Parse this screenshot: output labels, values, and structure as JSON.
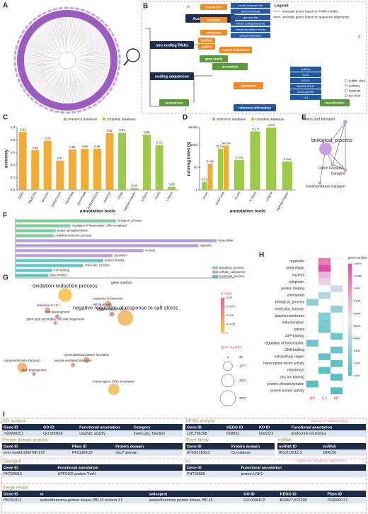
{
  "panel_labels": [
    "A",
    "B",
    "C",
    "D",
    "E",
    "F",
    "G",
    "H",
    "I"
  ],
  "diagram_b": {
    "numerals": [
      "iii",
      "ii",
      "i"
    ],
    "nodes": [
      "Auxiliary functions",
      "non-coding RNAs",
      "coding sequences",
      "lncRNA",
      "miRNA",
      "extract sequences",
      "gene family",
      "annotation",
      "annotations",
      "databases",
      "reference information",
      "visualization",
      "conversion",
      "translate",
      "extraction"
    ],
    "aux_items": [
      "format sequence file",
      "batch download",
      "genome file",
      "extract coding sequence",
      "merge annotation results",
      "extract information"
    ],
    "db_items": [
      "UniProt",
      "COG",
      "KEGG",
      "SWISS-PROT",
      "plant-specific",
      "GO"
    ],
    "vis_items": [
      "bubble chart",
      "pathway",
      "heatmap",
      "bar chart"
    ],
    "legend_title": "Legend",
    "legend_items": [
      "annotate genes based on HMM models",
      "annotate genes based on sequence alignments"
    ]
  },
  "network_e": {
    "nodes": [
      "amino acid transport",
      "biological_process",
      "cation transport",
      "transport",
      "transmembrane transport"
    ]
  },
  "chart_data": [
    {
      "type": "bar",
      "x_label": "annotation tools",
      "y_label": "accuracy",
      "categories": [
        "GFAP",
        "blast2GO",
        "pannzer",
        "interproscan",
        "blastkoala",
        "ghostkoala",
        "KofamKOALA",
        "pannzer",
        "GFAP",
        "eggnog-mapper",
        "KOBAS",
        "KAAS",
        "Uniprot"
      ],
      "series": [
        {
          "name": "reference database",
          "color": "#9ccb4a",
          "values": [
            null,
            null,
            null,
            null,
            null,
            null,
            null,
            null,
            0.92,
            0.03,
            0.89,
            0.72,
            0.05
          ]
        },
        {
          "name": "complete database",
          "color": "#f2ab33",
          "values": [
            0.93,
            0.64,
            0.79,
            0.47,
            0.65,
            0.66,
            0.66,
            0.91,
            null,
            null,
            null,
            null,
            null
          ]
        }
      ],
      "ylim": [
        0,
        1
      ],
      "yticks": [
        {
          "value": 0,
          "label": "0.0"
        },
        0.2,
        0.4,
        0.6,
        0.8,
        {
          "value": 1,
          "label": "1.0"
        }
      ]
    },
    {
      "type": "bar",
      "log_scale": true,
      "x_label": "annotation tools",
      "y_label": "running times (s)",
      "categories": [
        "GFAP",
        "GFAP-web",
        "KAAS",
        "KOBAS",
        "Uniprot",
        "eggnog-mapper"
      ],
      "series": [
        {
          "name": "reference database",
          "color": "#9ccb4a",
          "values": [
            4.5,
            1860,
            240,
            43200,
            86400,
            180
          ],
          "value_labels": [
            "4.5 s",
            "31 min",
            "4 min",
            "+12 h",
            "+24 h",
            "3 min"
          ]
        },
        {
          "name": "complete database",
          "color": "#f2ab33",
          "values": [
            120,
            3240,
            null,
            null,
            null,
            null
          ],
          "value_labels": [
            "2 min",
            "54 min",
            null,
            null,
            null,
            null
          ]
        }
      ],
      "ylim": [
        1,
        86400
      ],
      "yticks": [
        1,
        60,
        3600,
        86400
      ]
    },
    {
      "type": "hbar",
      "x_label": "gene number",
      "categories": [
        "biological_process",
        "regulation of transcription, DNA-templated",
        "protein phosphorylation",
        "oxidation-reduction process",
        "intracellular",
        "organelle",
        "nucleus",
        "cytoplasm",
        "protein binding",
        "molecular_function",
        "ATP binding",
        "DNA binding"
      ],
      "series": [
        {
          "name": "biological_process",
          "color": "#7fcf9a",
          "values": [
            5500,
            3000,
            2200,
            2100,
            null,
            null,
            null,
            null,
            null,
            null,
            null,
            null
          ]
        },
        {
          "name": "cellular_component",
          "color": "#b79bd8",
          "values": [
            null,
            null,
            null,
            null,
            11000,
            10000,
            7000,
            5300,
            null,
            null,
            null,
            null
          ]
        },
        {
          "name": "molecular_function",
          "color": "#5fc3c3",
          "values": [
            null,
            null,
            null,
            null,
            null,
            null,
            null,
            null,
            4800,
            3700,
            2000,
            1800
          ]
        }
      ],
      "xlim": [
        0,
        12000
      ]
    },
    {
      "type": "bubble",
      "color_label": "p.value",
      "size_label": "gene number",
      "labels": [
        "oxidation-reduction process",
        "negative regulation of response to salt stress",
        "response to UV",
        "root development",
        "plant-type secondary cell wall biogenesis",
        "response to hormone",
        "cell tip growth",
        "protein ubiquitination",
        "proximal/distal pattern formation",
        "vesicle-mediated transport",
        "transmembrane transport",
        "leaf development",
        "transcription, DNA-templated"
      ],
      "x": [
        2.8,
        5.9,
        1.9,
        2.4,
        2.3,
        5.0,
        4.7,
        5.2,
        3.9,
        3.2,
        0.6,
        1.2,
        5.3
      ],
      "values": [
        9.0,
        7.2,
        7.8,
        7.3,
        6.8,
        8.3,
        7.9,
        7.5,
        3.9,
        3.5,
        3.3,
        2.8,
        1.6
      ],
      "sizes": [
        2900,
        3767,
        500,
        300,
        200,
        600,
        250,
        400,
        500,
        300,
        1500,
        200,
        2000
      ],
      "p_values": [
        0.002,
        0.01,
        0.03,
        0.04,
        0.035,
        0.02,
        0.045,
        0.04,
        0.02,
        0.03,
        0.015,
        0.04,
        0.005
      ],
      "xlim": [
        0,
        10
      ],
      "ylim": [
        0,
        10
      ],
      "clim": [
        0,
        0.05
      ],
      "color_scale": [
        "#f4c542",
        "#e06aa8"
      ],
      "color_ticks": [
        0,
        0.0125,
        0.025,
        0.0375,
        0.05
      ],
      "size_ticks": [
        32,
        1277,
        2522,
        3767
      ]
    },
    {
      "type": "heatmap",
      "legend_title": "gene number",
      "columns": [
        "BP",
        "CC",
        "MF"
      ],
      "rows": [
        "organelle",
        "intracellular",
        "nucleus",
        "cytoplasm",
        "protein binding",
        "chloroplast",
        "biological_process",
        "molecular_function",
        "plasma membrane",
        "mitochondrion",
        "cytosol",
        "ATP binding",
        "regulation of transcription",
        "DNA binding",
        "extracellular region",
        "transcription factor activity",
        "membrane",
        "zinc ion binding",
        "protein phosphorylation",
        "protein kinase activity"
      ],
      "values": [
        [
          null,
          10000,
          null
        ],
        [
          null,
          11650,
          null
        ],
        [
          null,
          8000,
          null
        ],
        [
          null,
          7000,
          null
        ],
        [
          null,
          null,
          5500
        ],
        [
          null,
          4500,
          null
        ],
        [
          3500,
          null,
          null
        ],
        [
          null,
          null,
          3500
        ],
        [
          null,
          3000,
          null
        ],
        [
          null,
          2700,
          null
        ],
        [
          null,
          2500,
          null
        ],
        [
          null,
          null,
          2300
        ],
        [
          2200,
          null,
          null
        ],
        [
          null,
          null,
          2000
        ],
        [
          null,
          1800,
          null
        ],
        [
          null,
          null,
          1700
        ],
        [
          null,
          1600,
          null
        ],
        [
          null,
          null,
          1500
        ],
        [
          1400,
          null,
          null
        ],
        [
          null,
          null,
          1300
        ]
      ],
      "clim": [
        1165,
        11650
      ],
      "color_scale": [
        "#4fbfc0",
        "#ece3f2",
        "#e0509f"
      ],
      "cticks": [
        11650,
        10485,
        9320,
        8155,
        6990,
        5825,
        4660,
        3495,
        2330,
        1165
      ]
    }
  ],
  "tables_i": {
    "notes": [
      "based on HMM models",
      "based on sequence alignments"
    ],
    "sections": [
      {
        "title": "GO analysis",
        "headers": [
          "Gene ID",
          "GO ID",
          "Functional annotation",
          "Category"
        ],
        "row": [
          "JS566603.1",
          "GO:000824",
          "catalytic activity",
          "molecular_function"
        ]
      },
      {
        "title": "KEGG analysis",
        "headers": [
          "Gene ID",
          "KEGG ID",
          "KO ID",
          "Functional annotation"
        ],
        "row": [
          "LOC786298",
          "K08831",
          "ko01522",
          "Endocrine resistance"
        ]
      },
      {
        "title": "Protein-domain analysis",
        "headers": [
          "Gene ID",
          "Pfam ID",
          "Protein domain"
        ],
        "row": [
          "evm.model.000070F.172",
          "PF01369.22",
          "Sec7 domain"
        ]
      },
      {
        "title": "Gene family",
        "headers": [
          "Gene ID",
          "Protein domain"
        ],
        "row": [
          "AT5G21105.3",
          "Cu-oxidase"
        ]
      },
      {
        "title": "ncRNA",
        "headers": [
          "ncRNA ID",
          "ncRNA"
        ],
        "row": [
          "RK1012512.3",
          "MIR156"
        ]
      },
      {
        "title": "Swissprot",
        "headers": [
          "Gene ID",
          "Functional annotation"
        ],
        "row": [
          "PNTS0916",
          "UPF0102 protein YraN"
        ]
      },
      {
        "title": "nr",
        "headers": [
          "Gene ID",
          "Functional annotation"
        ],
        "row": [
          "PNT55688",
          "protein LNK1"
        ]
      },
      {
        "title": "merge results",
        "headers": [
          "Gene ID",
          "nr",
          "swissprot",
          "GO ID",
          "KEGG ID",
          "Pfam ID"
        ],
        "row": [
          "PNT51912",
          "serine/threonine-protein kinase PBL16 isoform X1",
          "serine/threonine protein kinase PBL16",
          "GO:0004672",
          "K04427,K07209",
          "PF00069.27"
        ]
      }
    ]
  }
}
